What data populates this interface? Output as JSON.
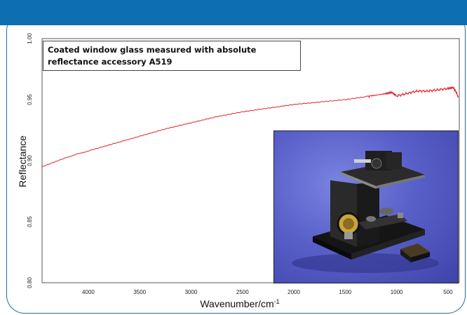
{
  "chart_data": {
    "type": "line",
    "title": "",
    "annotation": "Coated window glass measured with absolute reflectance accessory A519",
    "xlabel": "Wavenumber/cm",
    "xlabel_superscript": "-1",
    "ylabel": "Reflectance",
    "xlim": [
      4450,
      390
    ],
    "ylim": [
      0.8,
      1.0
    ],
    "x_ticks": [
      4000,
      3500,
      3000,
      2500,
      2000,
      1500,
      1000,
      500
    ],
    "y_ticks": [
      "0.80",
      "0.85",
      "0.90",
      "0.95",
      "1.00"
    ],
    "grid": false,
    "series": [
      {
        "color": "#e4202a",
        "x": [
          4450,
          4200,
          4000,
          3750,
          3500,
          3250,
          3000,
          2750,
          2500,
          2250,
          2000,
          1750,
          1500,
          1250,
          1100,
          1050,
          1000,
          900,
          800,
          700,
          600,
          500,
          450,
          420,
          400
        ],
        "y": [
          0.895,
          0.903,
          0.908,
          0.914,
          0.92,
          0.926,
          0.931,
          0.936,
          0.94,
          0.943,
          0.946,
          0.948,
          0.95,
          0.953,
          0.955,
          0.956,
          0.953,
          0.955,
          0.957,
          0.957,
          0.958,
          0.959,
          0.96,
          0.956,
          0.952
        ]
      }
    ]
  },
  "photo": {
    "subject": "absolute reflectance accessory A519"
  }
}
